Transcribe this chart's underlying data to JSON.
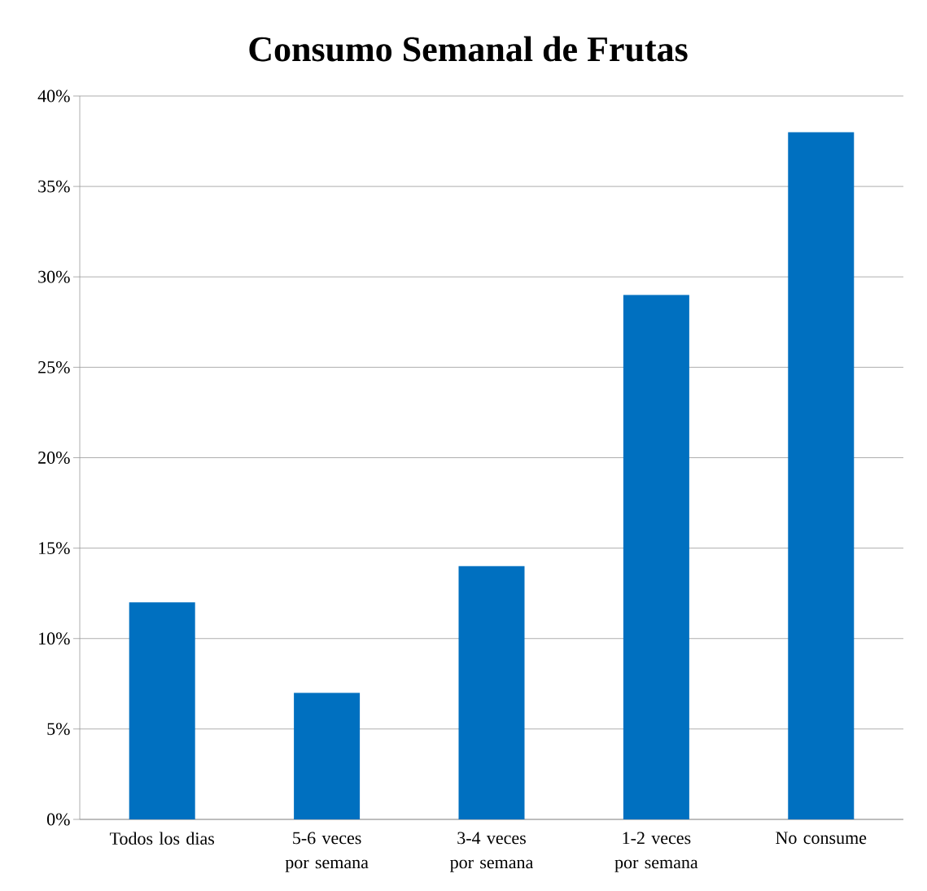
{
  "chart_data": {
    "type": "bar",
    "title": "Consumo Semanal de Frutas",
    "categories": [
      "Todos los dias",
      "5-6 veces por semana",
      "3-4 veces por semana",
      "1-2 veces por semana",
      "No consume"
    ],
    "values": [
      12,
      7,
      14,
      29,
      38
    ],
    "color": "#0070c0",
    "ylim": [
      0,
      40
    ],
    "yticks": [
      {
        "value": 0,
        "label": "0%"
      },
      {
        "value": 5,
        "label": "5%"
      },
      {
        "value": 10,
        "label": "10%"
      },
      {
        "value": 15,
        "label": "15%"
      },
      {
        "value": 20,
        "label": "20%"
      },
      {
        "value": 25,
        "label": "25%"
      },
      {
        "value": 30,
        "label": "30%"
      },
      {
        "value": 35,
        "label": "35%"
      },
      {
        "value": 40,
        "label": "40%"
      }
    ],
    "grid": "y"
  }
}
